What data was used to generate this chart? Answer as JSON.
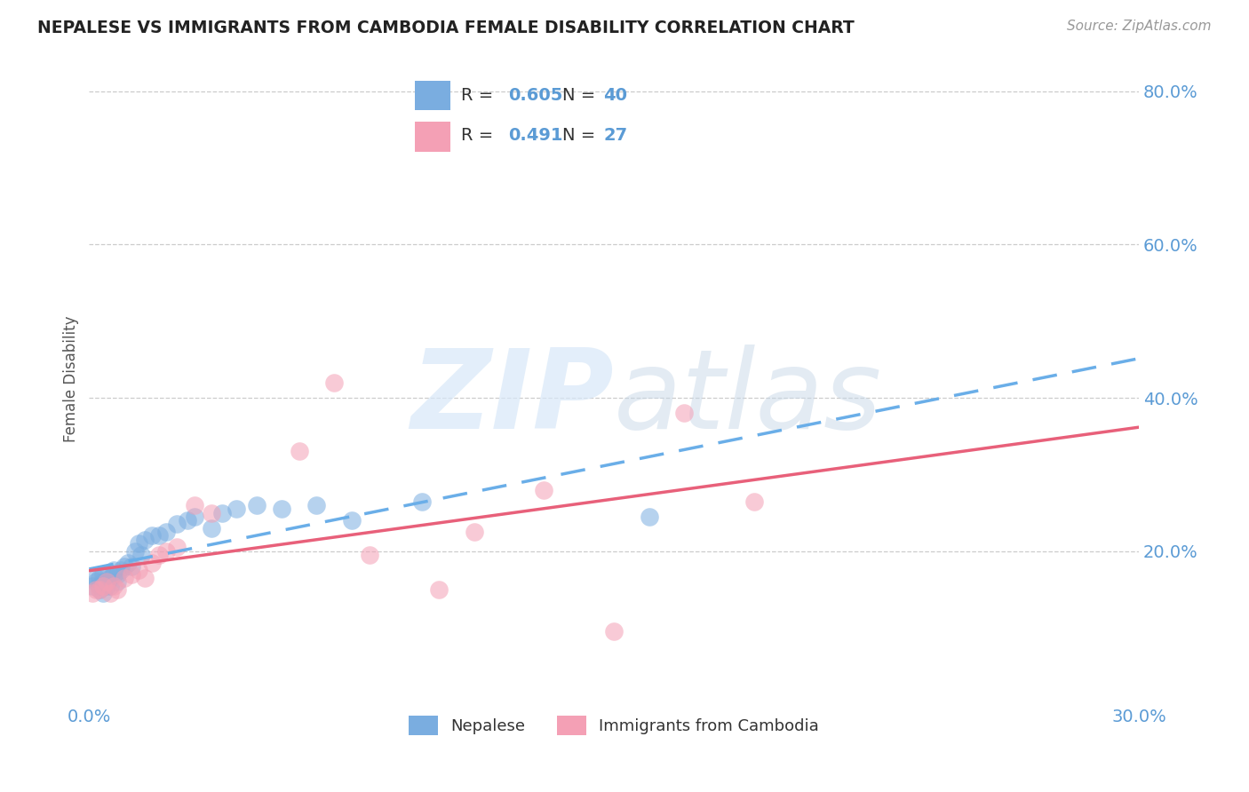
{
  "title": "NEPALESE VS IMMIGRANTS FROM CAMBODIA FEMALE DISABILITY CORRELATION CHART",
  "source": "Source: ZipAtlas.com",
  "tick_color": "#5b9bd5",
  "ylabel": "Female Disability",
  "xlim": [
    0.0,
    0.3
  ],
  "ylim": [
    0.0,
    0.85
  ],
  "xticks_show": [
    0.0,
    0.3
  ],
  "xticks_minor": [
    0.05,
    0.1,
    0.15,
    0.2,
    0.25
  ],
  "yticks": [
    0.2,
    0.4,
    0.6,
    0.8
  ],
  "nepalese_R": 0.605,
  "nepalese_N": 40,
  "cambodia_R": 0.491,
  "cambodia_N": 27,
  "nepalese_color": "#7aade0",
  "cambodia_color": "#f4a0b5",
  "nepalese_line_color": "#6aaee8",
  "cambodia_line_color": "#e8607a",
  "nepalese_x": [
    0.001,
    0.002,
    0.002,
    0.003,
    0.003,
    0.003,
    0.004,
    0.004,
    0.004,
    0.005,
    0.005,
    0.006,
    0.006,
    0.007,
    0.007,
    0.008,
    0.008,
    0.009,
    0.01,
    0.011,
    0.012,
    0.013,
    0.014,
    0.015,
    0.016,
    0.018,
    0.02,
    0.022,
    0.025,
    0.028,
    0.03,
    0.035,
    0.038,
    0.042,
    0.048,
    0.055,
    0.065,
    0.075,
    0.095,
    0.16
  ],
  "nepalese_y": [
    0.155,
    0.16,
    0.165,
    0.15,
    0.155,
    0.165,
    0.145,
    0.16,
    0.17,
    0.155,
    0.16,
    0.155,
    0.165,
    0.17,
    0.175,
    0.16,
    0.17,
    0.175,
    0.18,
    0.185,
    0.18,
    0.2,
    0.21,
    0.195,
    0.215,
    0.22,
    0.22,
    0.225,
    0.235,
    0.24,
    0.245,
    0.23,
    0.25,
    0.255,
    0.26,
    0.255,
    0.26,
    0.24,
    0.265,
    0.245
  ],
  "cambodia_x": [
    0.001,
    0.002,
    0.003,
    0.004,
    0.005,
    0.006,
    0.007,
    0.008,
    0.01,
    0.012,
    0.014,
    0.016,
    0.018,
    0.02,
    0.022,
    0.025,
    0.03,
    0.035,
    0.1,
    0.15,
    0.17,
    0.19,
    0.06,
    0.07,
    0.08,
    0.11,
    0.13
  ],
  "cambodia_y": [
    0.145,
    0.15,
    0.15,
    0.155,
    0.16,
    0.145,
    0.155,
    0.15,
    0.165,
    0.17,
    0.175,
    0.165,
    0.185,
    0.195,
    0.2,
    0.205,
    0.26,
    0.25,
    0.15,
    0.095,
    0.38,
    0.265,
    0.33,
    0.42,
    0.195,
    0.225,
    0.28
  ]
}
